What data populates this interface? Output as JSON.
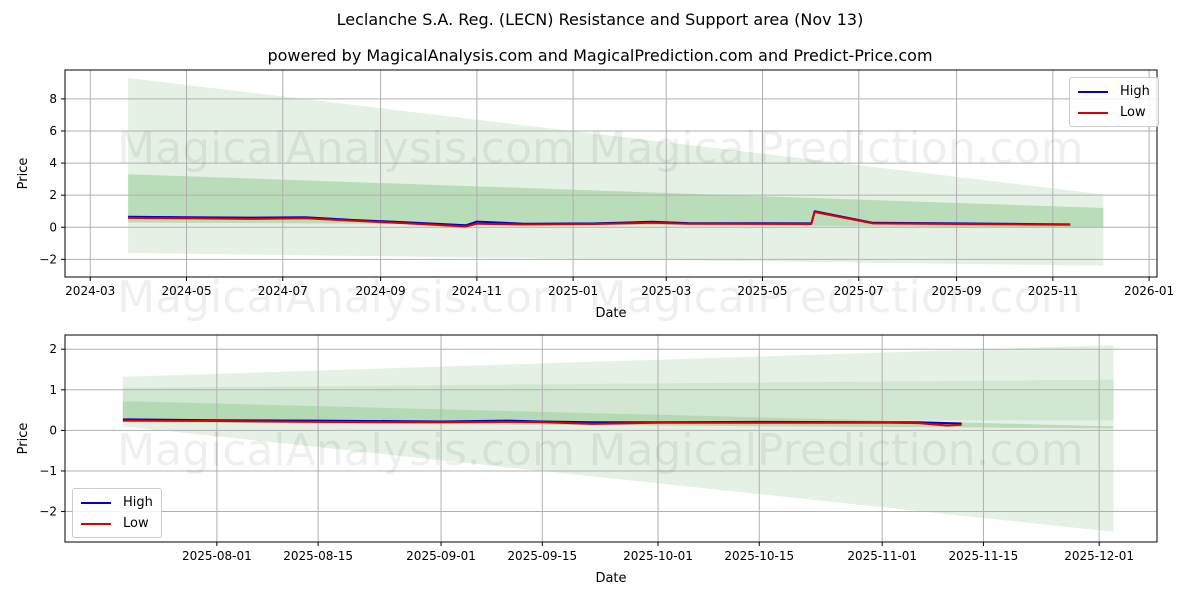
{
  "title": "Leclanche S.A. Reg. (LECN) Resistance and Support area (Nov 13)",
  "subtitle": "powered by MagicalAnalysis.com and MagicalPrediction.com and Predict-Price.com",
  "watermarks": [
    "MagicalAnalysis.com",
    "MagicalPrediction.com"
  ],
  "colors": {
    "high": "#0000cc",
    "low": "#dd0000",
    "band_light": "#e2f0e2",
    "band_mid": "#cfe6cf",
    "band_dark": "#a9d5a9",
    "grid": "#b0b0b0"
  },
  "chart_data": [
    {
      "type": "line",
      "title": "Leclanche S.A. Reg. (LECN) Resistance and Support area (Nov 13)",
      "xlabel": "Date",
      "ylabel": "Price",
      "ylim": [
        -3.1,
        9.8
      ],
      "grid": true,
      "legend_position": "upper right",
      "x_ticks": [
        "2024-03",
        "2024-05",
        "2024-07",
        "2024-09",
        "2024-11",
        "2025-01",
        "2025-03",
        "2025-05",
        "2025-07",
        "2025-09",
        "2025-11",
        "2026-01"
      ],
      "y_ticks": [
        -2,
        0,
        2,
        4,
        6,
        8
      ],
      "series": [
        {
          "name": "High",
          "color": "#0000cc",
          "x": [
            "2024-03-25",
            "2024-05-01",
            "2024-06-10",
            "2024-07-15",
            "2024-08-15",
            "2024-09-15",
            "2024-10-25",
            "2024-11-01",
            "2024-12-01",
            "2025-01-15",
            "2025-02-20",
            "2025-03-15",
            "2025-05-01",
            "2025-06-01",
            "2025-06-03",
            "2025-07-10",
            "2025-09-01",
            "2025-10-15",
            "2025-11-12"
          ],
          "values": [
            0.65,
            0.62,
            0.6,
            0.62,
            0.45,
            0.32,
            0.12,
            0.35,
            0.22,
            0.24,
            0.34,
            0.26,
            0.25,
            0.24,
            1.0,
            0.28,
            0.24,
            0.2,
            0.18
          ]
        },
        {
          "name": "Low",
          "color": "#dd0000",
          "x": [
            "2024-03-25",
            "2024-05-01",
            "2024-06-10",
            "2024-07-15",
            "2024-08-15",
            "2024-09-15",
            "2024-10-25",
            "2024-11-01",
            "2024-12-01",
            "2025-01-15",
            "2025-02-20",
            "2025-03-15",
            "2025-05-01",
            "2025-06-01",
            "2025-06-03",
            "2025-07-10",
            "2025-09-01",
            "2025-10-15",
            "2025-11-12"
          ],
          "values": [
            0.58,
            0.56,
            0.52,
            0.56,
            0.4,
            0.26,
            0.05,
            0.22,
            0.17,
            0.2,
            0.28,
            0.22,
            0.21,
            0.2,
            0.95,
            0.24,
            0.2,
            0.17,
            0.15
          ]
        }
      ],
      "bands": [
        {
          "name": "outer",
          "x": [
            "2024-03-25",
            "2025-12-03"
          ],
          "upper": [
            9.3,
            2.05
          ],
          "lower": [
            -1.6,
            -2.4
          ]
        },
        {
          "name": "inner",
          "x": [
            "2024-03-25",
            "2025-12-03"
          ],
          "upper": [
            3.3,
            1.2
          ],
          "lower": [
            0.3,
            0.0
          ]
        }
      ]
    },
    {
      "type": "line",
      "xlabel": "Date",
      "ylabel": "Price",
      "ylim": [
        -2.75,
        2.35
      ],
      "grid": true,
      "legend_position": "lower left",
      "x_ticks": [
        "2025-08-01",
        "2025-08-15",
        "2025-09-01",
        "2025-09-15",
        "2025-10-01",
        "2025-10-15",
        "2025-11-01",
        "2025-11-15",
        "2025-12-01"
      ],
      "y_ticks": [
        -2,
        -1,
        0,
        1,
        2
      ],
      "series": [
        {
          "name": "High",
          "color": "#0000cc",
          "x": [
            "2025-07-19",
            "2025-08-01",
            "2025-08-15",
            "2025-09-01",
            "2025-09-10",
            "2025-09-15",
            "2025-09-22",
            "2025-10-01",
            "2025-10-15",
            "2025-11-01",
            "2025-11-06",
            "2025-11-10",
            "2025-11-12"
          ],
          "values": [
            0.27,
            0.25,
            0.24,
            0.22,
            0.24,
            0.22,
            0.2,
            0.2,
            0.21,
            0.2,
            0.2,
            0.18,
            0.17
          ]
        },
        {
          "name": "Low",
          "color": "#dd0000",
          "x": [
            "2025-07-19",
            "2025-08-01",
            "2025-08-15",
            "2025-09-01",
            "2025-09-10",
            "2025-09-15",
            "2025-09-22",
            "2025-10-01",
            "2025-10-15",
            "2025-11-01",
            "2025-11-06",
            "2025-11-10",
            "2025-11-12"
          ],
          "values": [
            0.24,
            0.23,
            0.21,
            0.2,
            0.21,
            0.2,
            0.16,
            0.19,
            0.19,
            0.19,
            0.18,
            0.12,
            0.14
          ]
        }
      ],
      "bands": [
        {
          "name": "outer",
          "x": [
            "2025-07-19",
            "2025-12-03"
          ],
          "upper": [
            1.32,
            2.1
          ],
          "lower": [
            0.1,
            -2.5
          ]
        },
        {
          "name": "middle",
          "x": [
            "2025-07-19",
            "2025-12-03"
          ],
          "upper": [
            1.05,
            1.25
          ],
          "lower": [
            0.25,
            0.25
          ]
        },
        {
          "name": "inner",
          "x": [
            "2025-07-19",
            "2025-12-03"
          ],
          "upper": [
            0.72,
            0.1
          ],
          "lower": [
            0.2,
            0.05
          ]
        }
      ]
    }
  ],
  "legend": {
    "high": "High",
    "low": "Low"
  },
  "axes": {
    "xlabel": "Date",
    "ylabel": "Price"
  }
}
